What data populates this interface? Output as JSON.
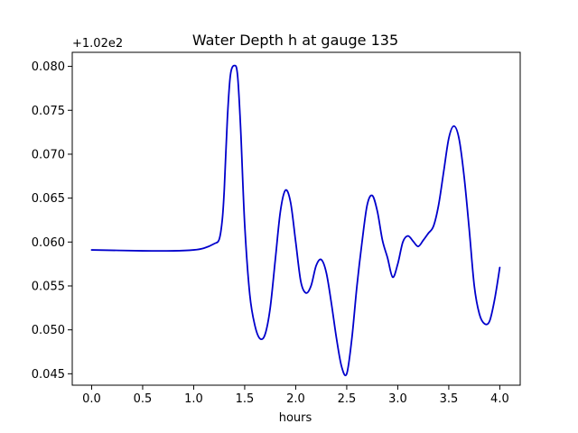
{
  "chart_data": {
    "type": "line",
    "title": "Water Depth h at gauge 135",
    "xlabel": "hours",
    "ylabel": "",
    "y_offset_label": "+1.02e2",
    "xlim": [
      -0.19,
      4.2
    ],
    "ylim": [
      0.0437,
      0.0816
    ],
    "xticks": [
      0.0,
      0.5,
      1.0,
      1.5,
      2.0,
      2.5,
      3.0,
      3.5,
      4.0
    ],
    "xtick_labels": [
      "0.0",
      "0.5",
      "1.0",
      "1.5",
      "2.0",
      "2.5",
      "3.0",
      "3.5",
      "4.0"
    ],
    "yticks": [
      0.045,
      0.05,
      0.055,
      0.06,
      0.065,
      0.07,
      0.075,
      0.08
    ],
    "ytick_labels": [
      "0.045",
      "0.050",
      "0.055",
      "0.060",
      "0.065",
      "0.070",
      "0.075",
      "0.080"
    ],
    "grid": false,
    "series": [
      {
        "color": "#0000cc",
        "x": [
          0.0,
          0.5,
          0.8,
          1.0,
          1.1,
          1.2,
          1.25,
          1.28,
          1.3,
          1.33,
          1.36,
          1.4,
          1.43,
          1.46,
          1.5,
          1.55,
          1.6,
          1.65,
          1.7,
          1.75,
          1.8,
          1.85,
          1.9,
          1.95,
          2.0,
          2.05,
          2.1,
          2.15,
          2.2,
          2.25,
          2.3,
          2.35,
          2.4,
          2.45,
          2.5,
          2.55,
          2.6,
          2.65,
          2.7,
          2.75,
          2.8,
          2.85,
          2.9,
          2.95,
          3.0,
          3.05,
          3.1,
          3.15,
          3.2,
          3.25,
          3.3,
          3.35,
          3.4,
          3.45,
          3.5,
          3.55,
          3.6,
          3.65,
          3.7,
          3.75,
          3.8,
          3.85,
          3.9,
          3.95,
          4.0
        ],
        "y": [
          0.0591,
          0.059,
          0.059,
          0.0591,
          0.0593,
          0.0598,
          0.0603,
          0.0625,
          0.066,
          0.074,
          0.079,
          0.0801,
          0.079,
          0.073,
          0.062,
          0.054,
          0.0505,
          0.049,
          0.0495,
          0.0525,
          0.058,
          0.0635,
          0.0659,
          0.0645,
          0.06,
          0.0555,
          0.0542,
          0.055,
          0.0573,
          0.058,
          0.0565,
          0.053,
          0.049,
          0.0458,
          0.045,
          0.049,
          0.055,
          0.06,
          0.0642,
          0.0653,
          0.0635,
          0.0602,
          0.0582,
          0.056,
          0.0575,
          0.06,
          0.0607,
          0.0601,
          0.0595,
          0.0602,
          0.061,
          0.0618,
          0.0642,
          0.068,
          0.0718,
          0.0732,
          0.0718,
          0.0675,
          0.0615,
          0.055,
          0.0518,
          0.0507,
          0.051,
          0.0535,
          0.0571
        ]
      }
    ]
  }
}
